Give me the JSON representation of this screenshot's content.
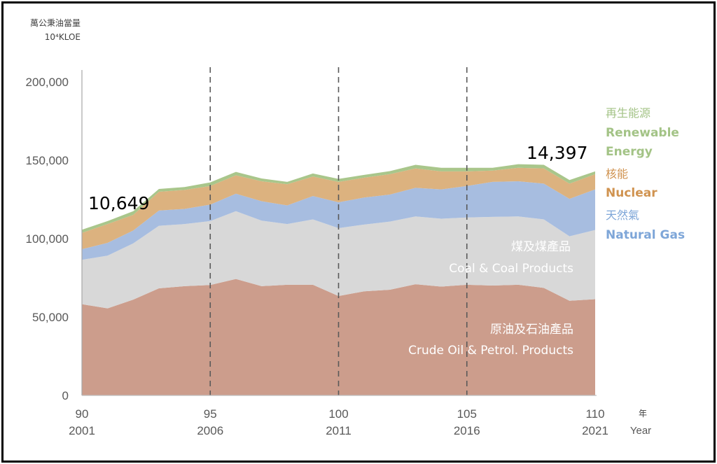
{
  "chart_data": {
    "type": "area",
    "stacked": true,
    "ylabel_zh": "萬公秉油當量",
    "ylabel_unit": "10⁴KLOE",
    "xlabel_zh": "年",
    "xlabel_en": "Year",
    "ylim": [
      0,
      200000
    ],
    "yticks": [
      "0",
      "50,000",
      "100,000",
      "150,000",
      "200,000"
    ],
    "ytick_values": [
      0,
      50000,
      100000,
      150000,
      200000
    ],
    "x": [
      90,
      91,
      92,
      93,
      94,
      95,
      96,
      97,
      98,
      99,
      100,
      101,
      102,
      103,
      104,
      105,
      106,
      107,
      108,
      109,
      110
    ],
    "xticks": [
      {
        "roc": "90",
        "ad": "2001",
        "value": 90
      },
      {
        "roc": "95",
        "ad": "2006",
        "value": 95
      },
      {
        "roc": "100",
        "ad": "2011",
        "value": 100
      },
      {
        "roc": "105",
        "ad": "2016",
        "value": 105
      },
      {
        "roc": "110",
        "ad": "2021",
        "value": 110
      }
    ],
    "dashed_reference_years": [
      95,
      100,
      105
    ],
    "grid": false,
    "series": [
      {
        "name_zh": "原油及石油產品",
        "name": "Crude Oil & Petrol. Products",
        "color": "#cc9d8c",
        "values": [
          58200,
          55500,
          61100,
          68300,
          69700,
          70400,
          74300,
          69700,
          70600,
          70600,
          63400,
          66400,
          67400,
          70900,
          69400,
          70600,
          70100,
          70600,
          68600,
          60400,
          61400
        ]
      },
      {
        "name_zh": "煤及煤產品",
        "name": "Coal & Coal Products",
        "color": "#d8d8d8",
        "values": [
          28300,
          33700,
          35900,
          39900,
          39600,
          40800,
          43200,
          41800,
          38700,
          41700,
          43300,
          42600,
          43500,
          43300,
          43300,
          42900,
          43800,
          43600,
          43700,
          41100,
          44100
        ]
      },
      {
        "name_zh": "天然氣",
        "name": "Natural Gas",
        "color": "#a7bde0",
        "label_color": "#7ea6d8",
        "values": [
          6800,
          8100,
          8200,
          9700,
          9700,
          10500,
          11200,
          12400,
          11900,
          14900,
          16500,
          17200,
          17200,
          18200,
          18700,
          20100,
          22300,
          22400,
          22800,
          23900,
          25900
        ]
      },
      {
        "name_zh": "核能",
        "name": "Nuclear",
        "color": "#dcb27f",
        "label_color": "#d09350",
        "values": [
          10400,
          12000,
          10000,
          12000,
          12100,
          11900,
          11700,
          12700,
          13500,
          12400,
          13000,
          12700,
          13000,
          12400,
          11500,
          9300,
          7200,
          8600,
          9700,
          9700,
          9700
        ]
      },
      {
        "name_zh": "再生能源",
        "name": "Renewable Energy",
        "name_line1": "Renewable",
        "name_line2": "Energy",
        "color": "#a9c68b",
        "label_color": "#a3c386",
        "values": [
          2000,
          1900,
          2300,
          1800,
          1800,
          2300,
          2200,
          1800,
          1500,
          2000,
          1900,
          1800,
          2000,
          2300,
          2300,
          2300,
          1800,
          2300,
          2300,
          2300,
          1800
        ]
      }
    ],
    "annotations": [
      {
        "text": "10,649",
        "x": 90
      },
      {
        "text": "14,397",
        "x": 108
      }
    ]
  }
}
